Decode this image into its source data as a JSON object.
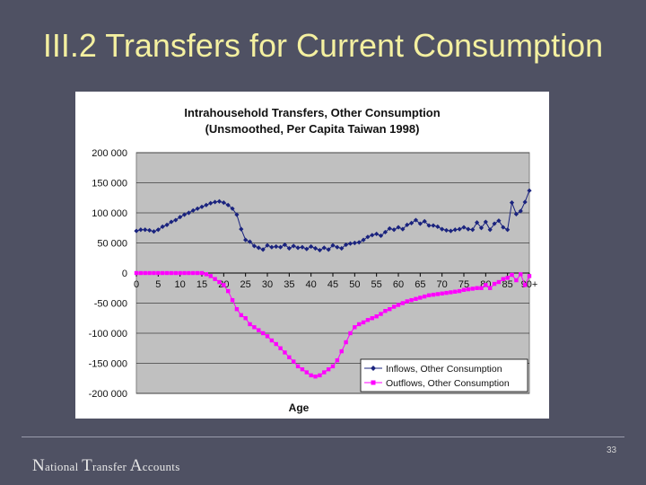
{
  "slide": {
    "title": "III.2 Transfers for Current Consumption",
    "footer": {
      "n": "N",
      "ational": "ational ",
      "t": "T",
      "ransfer": "ransfer ",
      "a": "A",
      "ccounts": "ccounts"
    },
    "page_number": "33"
  },
  "chart_data": {
    "type": "line",
    "title_line1": "Intrahousehold Transfers, Other Consumption",
    "title_line2": "(Unsmoothed, Per Capita Taiwan 1998)",
    "xlabel": "Age",
    "ylabel": "",
    "xlim": [
      0,
      90
    ],
    "ylim": [
      -200000,
      200000
    ],
    "x_tick_labels": [
      "0",
      "5",
      "10",
      "15",
      "20",
      "25",
      "30",
      "35",
      "40",
      "45",
      "50",
      "55",
      "60",
      "65",
      "70",
      "75",
      "80",
      "85",
      "90+"
    ],
    "y_tick_values": [
      200000,
      150000,
      100000,
      50000,
      0,
      -50000,
      -100000,
      -150000,
      -200000
    ],
    "y_tick_labels": [
      "200 000",
      "150 000",
      "100 000",
      "50 000",
      "0",
      "-50 000",
      "-100 000",
      "-150 000",
      "-200 000"
    ],
    "plot_background": "#c0c0c0",
    "grid": true,
    "legend_position": "bottom-right",
    "x": [
      0,
      1,
      2,
      3,
      4,
      5,
      6,
      7,
      8,
      9,
      10,
      11,
      12,
      13,
      14,
      15,
      16,
      17,
      18,
      19,
      20,
      21,
      22,
      23,
      24,
      25,
      26,
      27,
      28,
      29,
      30,
      31,
      32,
      33,
      34,
      35,
      36,
      37,
      38,
      39,
      40,
      41,
      42,
      43,
      44,
      45,
      46,
      47,
      48,
      49,
      50,
      51,
      52,
      53,
      54,
      55,
      56,
      57,
      58,
      59,
      60,
      61,
      62,
      63,
      64,
      65,
      66,
      67,
      68,
      69,
      70,
      71,
      72,
      73,
      74,
      75,
      76,
      77,
      78,
      79,
      80,
      81,
      82,
      83,
      84,
      85,
      86,
      87,
      88,
      89,
      90
    ],
    "series": [
      {
        "name": "Inflows, Other Consumption",
        "color": "#1a237e",
        "marker": "diamond",
        "values": [
          70000,
          72000,
          72000,
          71000,
          69000,
          72000,
          77000,
          80000,
          85000,
          88000,
          93000,
          97000,
          100000,
          104000,
          107000,
          110000,
          113000,
          116000,
          118000,
          119000,
          117000,
          113000,
          107000,
          97000,
          73000,
          55000,
          52000,
          45000,
          42000,
          39000,
          46000,
          43000,
          44000,
          43000,
          47000,
          41000,
          45000,
          42000,
          43000,
          40000,
          44000,
          41000,
          38000,
          42000,
          39000,
          46000,
          43000,
          41000,
          47000,
          49000,
          50000,
          51000,
          55000,
          60000,
          63000,
          65000,
          62000,
          68000,
          74000,
          72000,
          76000,
          73000,
          80000,
          83000,
          88000,
          82000,
          86000,
          79000,
          79000,
          77000,
          73000,
          71000,
          70000,
          72000,
          73000,
          76000,
          73000,
          72000,
          84000,
          75000,
          85000,
          72000,
          82000,
          87000,
          76000,
          72000,
          117000,
          98000,
          103000,
          118000,
          137000
        ]
      },
      {
        "name": "Outflows, Other Consumption",
        "color": "#ff00ff",
        "marker": "square",
        "values": [
          0,
          0,
          0,
          0,
          0,
          0,
          0,
          0,
          0,
          0,
          0,
          0,
          0,
          0,
          0,
          0,
          -2000,
          -5000,
          -10000,
          -15000,
          -20000,
          -30000,
          -45000,
          -60000,
          -70000,
          -75000,
          -85000,
          -90000,
          -95000,
          -100000,
          -105000,
          -112000,
          -118000,
          -125000,
          -132000,
          -140000,
          -147000,
          -155000,
          -160000,
          -165000,
          -170000,
          -172000,
          -170000,
          -165000,
          -160000,
          -155000,
          -145000,
          -130000,
          -115000,
          -100000,
          -90000,
          -85000,
          -82000,
          -78000,
          -75000,
          -72000,
          -68000,
          -63000,
          -60000,
          -56000,
          -53000,
          -50000,
          -47000,
          -45000,
          -43000,
          -41000,
          -39000,
          -37000,
          -36000,
          -35000,
          -34000,
          -33000,
          -32000,
          -31000,
          -30000,
          -28000,
          -27000,
          -26000,
          -25000,
          -25000,
          -20000,
          -25000,
          -18000,
          -15000,
          -10000,
          -8000,
          -3000,
          -12000,
          -2000,
          -20000,
          -5000
        ]
      }
    ]
  }
}
